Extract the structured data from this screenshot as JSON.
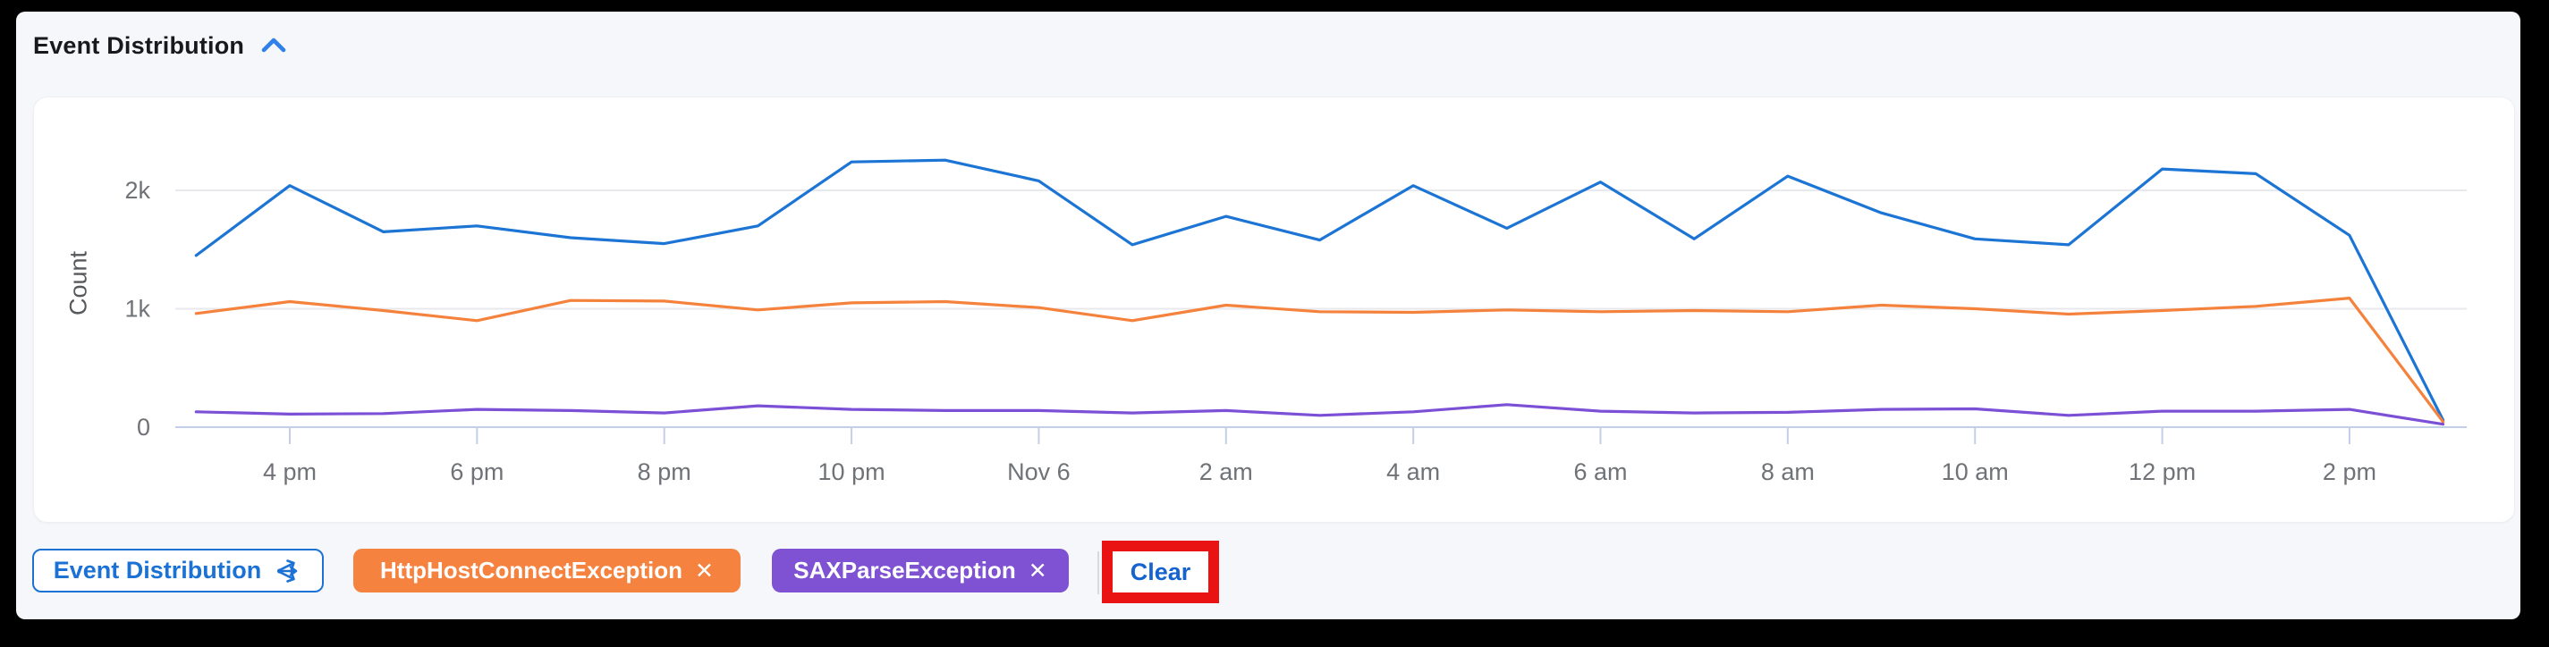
{
  "header": {
    "title": "Event Distribution",
    "collapse_icon": "chevron-up",
    "accent_color": "#2F80E8"
  },
  "chart_data": {
    "type": "line",
    "title": "Event Distribution",
    "ylabel": "Count",
    "ylim": [
      0,
      2500
    ],
    "grid": "horizontal",
    "legend_position": "none",
    "x": [
      "3 pm",
      "4 pm",
      "5 pm",
      "6 pm",
      "7 pm",
      "8 pm",
      "9 pm",
      "10 pm",
      "11 pm",
      "12 am (Nov 6)",
      "1 am",
      "2 am",
      "3 am",
      "4 am",
      "5 am",
      "6 am",
      "7 am",
      "8 am",
      "9 am",
      "10 am",
      "11 am",
      "12 pm",
      "1 pm",
      "2 pm",
      "3 pm"
    ],
    "yticks": [
      {
        "value": 0,
        "label": "0"
      },
      {
        "value": 1000,
        "label": "1k"
      },
      {
        "value": 2000,
        "label": "2k"
      }
    ],
    "xticks": [
      {
        "index": 1,
        "label": "4 pm"
      },
      {
        "index": 3,
        "label": "6 pm"
      },
      {
        "index": 5,
        "label": "8 pm"
      },
      {
        "index": 7,
        "label": "10 pm"
      },
      {
        "index": 9,
        "label": "Nov 6"
      },
      {
        "index": 11,
        "label": "2 am"
      },
      {
        "index": 13,
        "label": "4 am"
      },
      {
        "index": 15,
        "label": "6 am"
      },
      {
        "index": 17,
        "label": "8 am"
      },
      {
        "index": 19,
        "label": "10 am"
      },
      {
        "index": 21,
        "label": "12 pm"
      },
      {
        "index": 23,
        "label": "2 pm"
      }
    ],
    "series": [
      {
        "name": "series-blue",
        "color": "#1C75D4",
        "values": [
          1450,
          2040,
          1650,
          1700,
          1600,
          1550,
          1700,
          2240,
          2255,
          2080,
          1540,
          1780,
          1580,
          2040,
          1680,
          2070,
          1590,
          2120,
          1810,
          1590,
          1540,
          2180,
          2140,
          1620,
          60
        ]
      },
      {
        "name": "HttpHostConnectException",
        "color": "#F5823C",
        "values": [
          960,
          1060,
          985,
          900,
          1070,
          1065,
          990,
          1050,
          1060,
          1010,
          900,
          1030,
          975,
          970,
          990,
          975,
          985,
          975,
          1030,
          1000,
          955,
          985,
          1020,
          1090,
          45
        ]
      },
      {
        "name": "SAXParseException",
        "color": "#7C50D6",
        "values": [
          130,
          110,
          115,
          150,
          140,
          120,
          180,
          150,
          140,
          140,
          120,
          140,
          100,
          130,
          190,
          135,
          120,
          125,
          150,
          155,
          100,
          135,
          135,
          150,
          25
        ]
      }
    ],
    "axis_line_color": "#C3CFE8",
    "gridline_color": "#E8E9EC",
    "tick_label_color": "#6F7276"
  },
  "filters": {
    "panel_button": {
      "label": "Event Distribution",
      "icon": "share-branch-icon",
      "color": "#1C72D4"
    },
    "chips": [
      {
        "label": "HttpHostConnectException",
        "close": "✕",
        "color": "#F5823F"
      },
      {
        "label": "SAXParseException",
        "close": "✕",
        "color": "#7E52D3"
      }
    ],
    "clear_button": {
      "label": "Clear",
      "color": "#1563CE"
    },
    "annotation": {
      "type": "red-highlight-box",
      "color": "#E91313",
      "target": "clear-button"
    }
  }
}
